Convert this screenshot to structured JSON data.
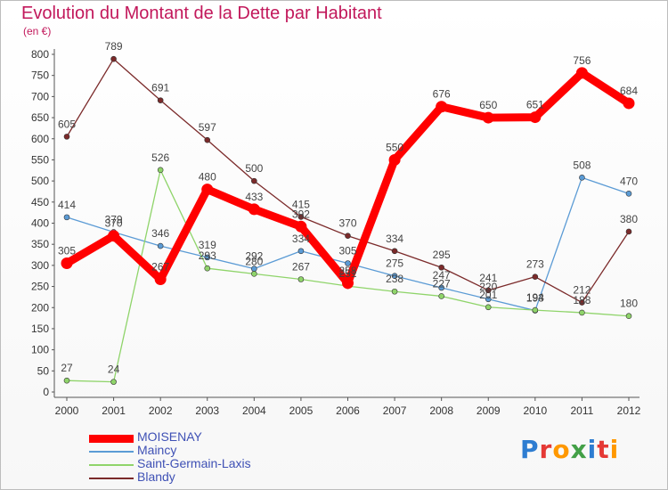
{
  "page": {
    "title": "Evolution du Montant de la Dette par Habitant",
    "unit": "(en €)",
    "logo": "Proxiti"
  },
  "chart_data": {
    "type": "line",
    "title": "Evolution du Montant de la Dette par Habitant",
    "ylabel": "(en €)",
    "xlabel": "",
    "x": [
      2000,
      2001,
      2002,
      2003,
      2004,
      2005,
      2006,
      2007,
      2008,
      2009,
      2010,
      2011,
      2012
    ],
    "ylim": [
      0,
      800
    ],
    "yticks": [
      0,
      50,
      100,
      150,
      200,
      250,
      300,
      350,
      400,
      450,
      500,
      550,
      600,
      650,
      700,
      750,
      800
    ],
    "grid": false,
    "legend_placement": "bottom-left",
    "series": [
      {
        "name": "MOISENAY",
        "color": "#ff0000",
        "style": "thick",
        "values": [
          305,
          370,
          267,
          480,
          433,
          392,
          258,
          550,
          676,
          650,
          651,
          756,
          684
        ],
        "labels": [
          "305",
          "370",
          "267",
          "480",
          "433",
          "392",
          "258",
          "550",
          "676",
          "650",
          "651",
          "756",
          "684"
        ]
      },
      {
        "name": "Maincy",
        "color": "#5b9bd5",
        "style": "thin",
        "values": [
          414,
          379,
          346,
          319,
          292,
          334,
          305,
          275,
          247,
          220,
          193,
          508,
          470
        ],
        "labels": [
          "414",
          "379",
          "346",
          "319",
          "292",
          "334",
          "305",
          "275",
          "247",
          "220",
          "193",
          "508",
          "470"
        ]
      },
      {
        "name": "Saint-Germain-Laxis",
        "color": "#8fd46a",
        "style": "thin",
        "values": [
          27,
          24,
          526,
          293,
          280,
          267,
          251,
          238,
          227,
          201,
          194,
          188,
          180
        ],
        "labels": [
          "27",
          "24",
          "526",
          "293",
          "280",
          "267",
          "251",
          "238",
          "227",
          "201",
          "194",
          "188",
          "180"
        ]
      },
      {
        "name": "Blandy",
        "color": "#7b2a2a",
        "style": "thin",
        "values": [
          605,
          789,
          691,
          597,
          500,
          415,
          370,
          334,
          295,
          241,
          273,
          212,
          380
        ],
        "labels": [
          "605",
          "789",
          "691",
          "597",
          "500",
          "415",
          "370",
          "334",
          "295",
          "241",
          "273",
          "212",
          "380"
        ]
      }
    ]
  }
}
